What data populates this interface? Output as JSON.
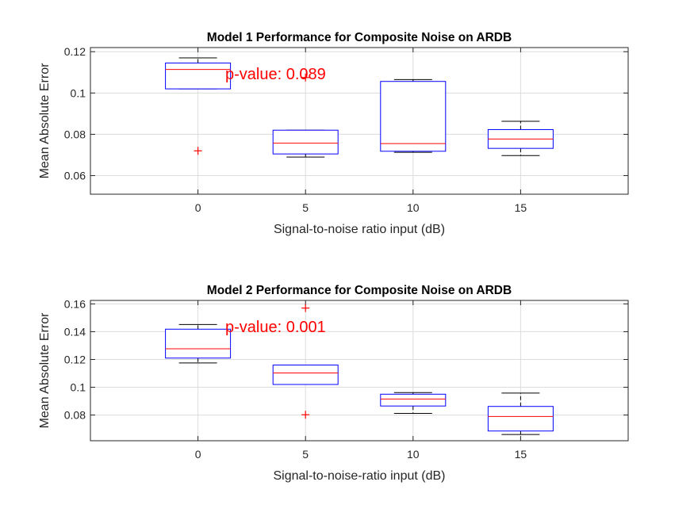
{
  "chart_data": [
    {
      "type": "box",
      "title": "Model 1 Performance for Composite Noise on ARDB",
      "xlabel": "Signal-to-noise ratio input (dB)",
      "ylabel": "Mean Absolute Error",
      "categories": [
        "0",
        "5",
        "10",
        "15"
      ],
      "ylim": [
        0.051,
        0.122
      ],
      "yticks": [
        0.06,
        0.08,
        0.1,
        0.12
      ],
      "ytick_labels": [
        "0.06",
        "0.08",
        "0.1",
        "0.12"
      ],
      "grid": true,
      "annotation": "p-value: 0.089",
      "boxes": [
        {
          "whisker_low": 0.102,
          "q1": 0.102,
          "median": 0.1114,
          "q3": 0.1145,
          "whisker_high": 0.117,
          "outliers": [
            0.072
          ]
        },
        {
          "whisker_low": 0.069,
          "q1": 0.0705,
          "median": 0.0757,
          "q3": 0.082,
          "whisker_high": 0.082,
          "outliers": [
            0.1075
          ]
        },
        {
          "whisker_low": 0.0713,
          "q1": 0.0718,
          "median": 0.0755,
          "q3": 0.1056,
          "whisker_high": 0.1065,
          "outliers": []
        },
        {
          "whisker_low": 0.0697,
          "q1": 0.0732,
          "median": 0.0777,
          "q3": 0.0823,
          "whisker_high": 0.0863,
          "outliers": []
        }
      ]
    },
    {
      "type": "box",
      "title": "Model 2 Performance for Composite Noise on ARDB",
      "xlabel": "Signal-to-noise-ratio input (dB)",
      "ylabel": "Mean Absolute Error",
      "categories": [
        "0",
        "5",
        "10",
        "15"
      ],
      "ylim": [
        0.0615,
        0.1625
      ],
      "yticks": [
        0.08,
        0.1,
        0.12,
        0.14,
        0.16
      ],
      "ytick_labels": [
        "0.08",
        "0.1",
        "0.12",
        "0.14",
        "0.16"
      ],
      "grid": true,
      "annotation": "p-value: 0.001",
      "boxes": [
        {
          "whisker_low": 0.1175,
          "q1": 0.121,
          "median": 0.1277,
          "q3": 0.1418,
          "whisker_high": 0.1452,
          "outliers": []
        },
        {
          "whisker_low": 0.102,
          "q1": 0.102,
          "median": 0.1103,
          "q3": 0.116,
          "whisker_high": 0.116,
          "outliers": [
            0.157,
            0.0802
          ]
        },
        {
          "whisker_low": 0.0812,
          "q1": 0.0865,
          "median": 0.0915,
          "q3": 0.095,
          "whisker_high": 0.0962,
          "outliers": []
        },
        {
          "whisker_low": 0.066,
          "q1": 0.0685,
          "median": 0.079,
          "q3": 0.0862,
          "whisker_high": 0.0958,
          "outliers": []
        }
      ]
    }
  ],
  "colors": {
    "box": "#0000ff",
    "median": "#ff0000",
    "whisker": "#000000",
    "outlier": "#ff0000",
    "annotation": "#ff0000",
    "grid": "#dcdcdc",
    "axis": "#262626"
  }
}
